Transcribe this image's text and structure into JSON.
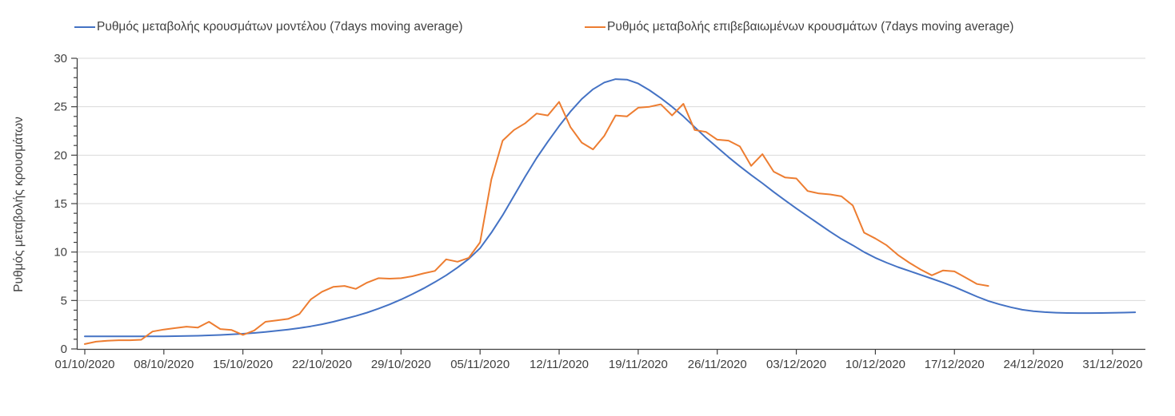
{
  "chart_data": {
    "type": "line",
    "title": "",
    "xlabel": "",
    "ylabel": "Ρυθμός μεταβολής κρουσμάτων",
    "ylim": [
      0,
      30
    ],
    "y_major_ticks": [
      0,
      5,
      10,
      15,
      20,
      25,
      30
    ],
    "y_minor_step": 1,
    "grid": "horizontal-major-only",
    "legend_position": "top",
    "x_tick_labels": [
      "01/10/2020",
      "08/10/2020",
      "15/10/2020",
      "22/10/2020",
      "29/10/2020",
      "05/11/2020",
      "12/11/2020",
      "19/11/2020",
      "26/11/2020",
      "03/12/2020",
      "10/12/2020",
      "17/12/2020",
      "24/12/2020",
      "31/12/2020"
    ],
    "x_tick_interval_days": 7,
    "colors": {
      "model": "#4472C4",
      "confirmed": "#ED7D31",
      "gridline": "#D9D9D9",
      "axis": "#404040",
      "text": "#404040"
    },
    "series": [
      {
        "name": "Ρυθμός μεταβολής κρουσμάτων μοντέλου (7days moving average)",
        "color_key": "model",
        "start_day": 0,
        "values": [
          1.3,
          1.3,
          1.3,
          1.3,
          1.3,
          1.3,
          1.3,
          1.3,
          1.32,
          1.34,
          1.36,
          1.4,
          1.44,
          1.5,
          1.57,
          1.65,
          1.75,
          1.87,
          2.0,
          2.15,
          2.33,
          2.55,
          2.8,
          3.1,
          3.4,
          3.75,
          4.15,
          4.6,
          5.1,
          5.65,
          6.25,
          6.9,
          7.6,
          8.4,
          9.3,
          10.4,
          12.0,
          13.8,
          15.8,
          17.8,
          19.7,
          21.4,
          23.0,
          24.5,
          25.8,
          26.8,
          27.5,
          27.85,
          27.8,
          27.4,
          26.7,
          25.9,
          25.0,
          24.0,
          22.9,
          21.8,
          20.8,
          19.8,
          18.85,
          17.95,
          17.1,
          16.2,
          15.35,
          14.5,
          13.7,
          12.9,
          12.1,
          11.35,
          10.7,
          10.0,
          9.4,
          8.9,
          8.45,
          8.05,
          7.65,
          7.25,
          6.85,
          6.4,
          5.9,
          5.4,
          4.95,
          4.6,
          4.3,
          4.05,
          3.9,
          3.8,
          3.74,
          3.71,
          3.7,
          3.7,
          3.71,
          3.73,
          3.75,
          3.78
        ]
      },
      {
        "name": "Ρυθμός μεταβολής επιβεβαιωμένων κρουσμάτων (7days moving average)",
        "color_key": "confirmed",
        "start_day": 0,
        "values": [
          0.5,
          0.75,
          0.85,
          0.9,
          0.9,
          0.95,
          1.8,
          2.0,
          2.15,
          2.3,
          2.2,
          2.8,
          2.05,
          1.95,
          1.45,
          1.9,
          2.8,
          2.95,
          3.1,
          3.6,
          5.1,
          5.9,
          6.4,
          6.5,
          6.2,
          6.85,
          7.3,
          7.25,
          7.3,
          7.5,
          7.8,
          8.05,
          9.25,
          9.0,
          9.4,
          11.0,
          17.5,
          21.5,
          22.6,
          23.3,
          24.3,
          24.1,
          25.5,
          22.9,
          21.3,
          20.6,
          22.0,
          24.1,
          24.0,
          24.9,
          25.0,
          25.25,
          24.1,
          25.3,
          22.6,
          22.4,
          21.6,
          21.5,
          20.9,
          18.9,
          20.1,
          18.3,
          17.7,
          17.6,
          16.3,
          16.05,
          15.95,
          15.75,
          14.8,
          12.0,
          11.4,
          10.7,
          9.7,
          8.9,
          8.2,
          7.6,
          8.1,
          8.0,
          7.35,
          6.7,
          6.5
        ]
      }
    ]
  }
}
